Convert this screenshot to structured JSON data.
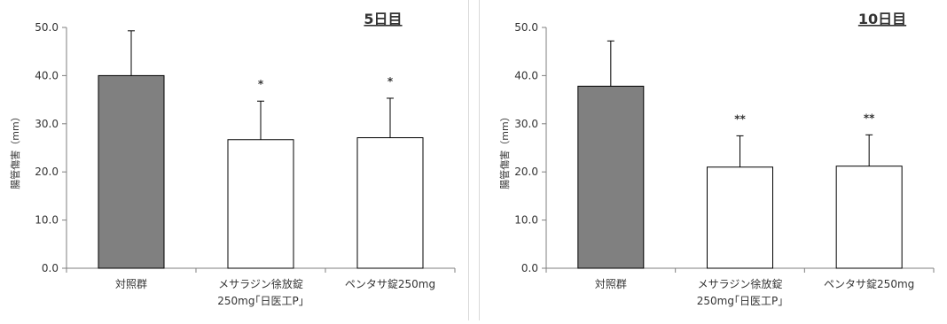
{
  "charts": [
    {
      "panel_title": "5日目",
      "chart_data": {
        "type": "bar",
        "title": "5日目",
        "xlabel": "",
        "ylabel": "腸管傷害（mm）",
        "ylim": [
          0,
          50
        ],
        "yticks": [
          "0.0",
          "10.0",
          "20.0",
          "30.0",
          "40.0",
          "50.0"
        ],
        "grid": false,
        "categories": [
          [
            "対照群"
          ],
          [
            "メサラジン徐放錠",
            "250mg｢日医工P｣"
          ],
          [
            "ペンタサ錠250mg"
          ]
        ],
        "values": [
          40.0,
          26.7,
          27.1
        ],
        "error": [
          9.3,
          8.0,
          8.2
        ],
        "significance": [
          "",
          "*",
          "*"
        ],
        "fill_colors": [
          "#808080",
          "#ffffff",
          "#ffffff"
        ]
      }
    },
    {
      "panel_title": "10日目",
      "chart_data": {
        "type": "bar",
        "title": "10日目",
        "xlabel": "",
        "ylabel": "腸管傷害（mm）",
        "ylim": [
          0,
          50
        ],
        "yticks": [
          "0.0",
          "10.0",
          "20.0",
          "30.0",
          "40.0",
          "50.0"
        ],
        "grid": false,
        "categories": [
          [
            "対照群"
          ],
          [
            "メサラジン徐放錠",
            "250mg｢日医工P｣"
          ],
          [
            "ペンタサ錠250mg"
          ]
        ],
        "values": [
          37.8,
          21.0,
          21.2
        ],
        "error": [
          9.4,
          6.5,
          6.5
        ],
        "significance": [
          "",
          "**",
          "**"
        ],
        "fill_colors": [
          "#808080",
          "#ffffff",
          "#ffffff"
        ]
      }
    }
  ]
}
